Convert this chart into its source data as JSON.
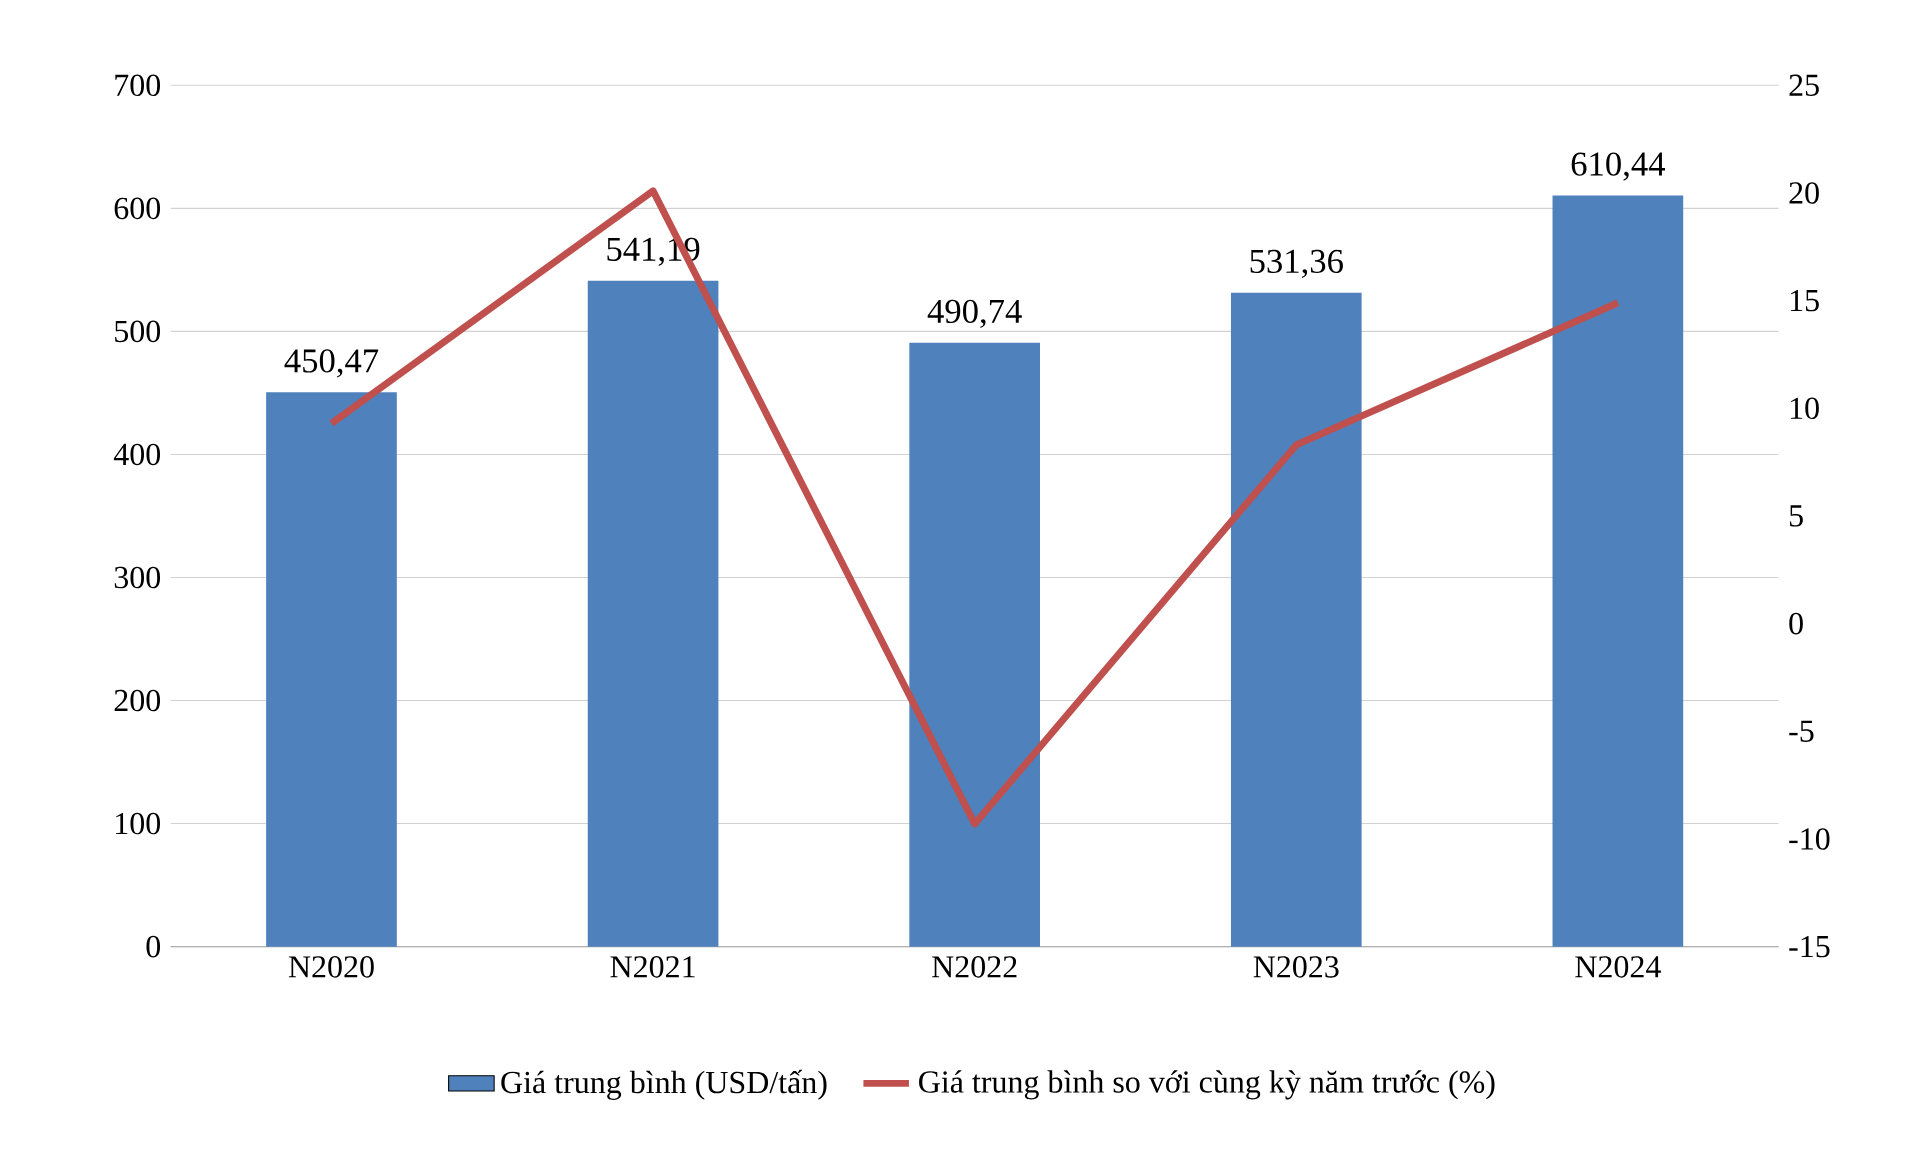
{
  "chart_data": {
    "type": "bar",
    "categories": [
      "N2020",
      "N2021",
      "N2022",
      "N2023",
      "N2024"
    ],
    "series": [
      {
        "name": "Giá trung bình (USD/tấn)",
        "color": "#4f81bd",
        "values": [
          450.47,
          541.19,
          490.74,
          531.36,
          610.44
        ],
        "value_labels": [
          "450,47",
          "541,19",
          "490,74",
          "531,36",
          "610,44"
        ]
      },
      {
        "name": "Giá trung bình so với cùng kỳ năm trước (%)",
        "type": "line",
        "axis": "y2",
        "color": "#c0504d",
        "values": [
          9.3,
          20.1,
          -9.3,
          8.3,
          14.9
        ]
      }
    ],
    "ylim": [
      0,
      700
    ],
    "yticks": [
      0,
      100,
      200,
      300,
      400,
      500,
      600,
      700
    ],
    "y2lim": [
      -15,
      25
    ],
    "y2ticks": [
      -15,
      -10,
      -5,
      0,
      5,
      10,
      15,
      20,
      25
    ],
    "grid": "y",
    "legend": "bottom"
  }
}
